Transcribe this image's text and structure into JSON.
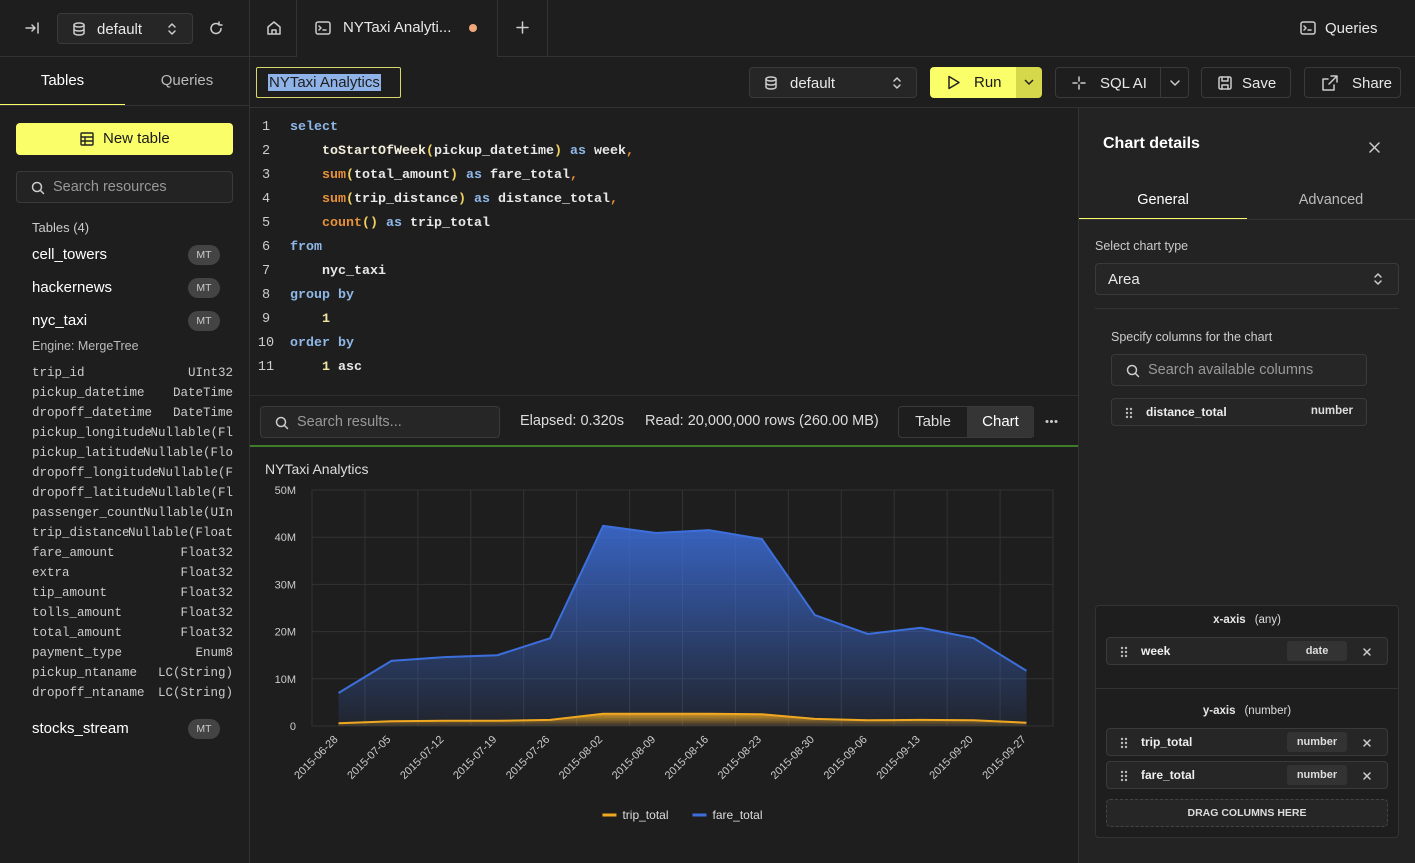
{
  "topbar": {
    "database": "default",
    "tab": "NYTaxi Analyti...",
    "queries": "Queries"
  },
  "sidebar": {
    "tabs": [
      "Tables",
      "Queries"
    ],
    "new_table": "New table",
    "search_placeholder": "Search resources",
    "tables_heading": "Tables (4)",
    "tables": [
      {
        "name": "cell_towers",
        "badge": "MT"
      },
      {
        "name": "hackernews",
        "badge": "MT"
      },
      {
        "name": "nyc_taxi",
        "badge": "MT",
        "engine": "Engine: MergeTree",
        "columns": [
          {
            "name": "trip_id",
            "type": "UInt32"
          },
          {
            "name": "pickup_datetime",
            "type": "DateTime"
          },
          {
            "name": "dropoff_datetime",
            "type": "DateTime"
          },
          {
            "name": "pickup_longitude",
            "type": "Nullable(Fl"
          },
          {
            "name": "pickup_latitude",
            "type": "Nullable(Flo"
          },
          {
            "name": "dropoff_longitude",
            "type": "Nullable(F"
          },
          {
            "name": "dropoff_latitude",
            "type": "Nullable(Fl"
          },
          {
            "name": "passenger_count",
            "type": "Nullable(UIn"
          },
          {
            "name": "trip_distance",
            "type": "Nullable(Float"
          },
          {
            "name": "fare_amount",
            "type": "Float32"
          },
          {
            "name": "extra",
            "type": "Float32"
          },
          {
            "name": "tip_amount",
            "type": "Float32"
          },
          {
            "name": "tolls_amount",
            "type": "Float32"
          },
          {
            "name": "total_amount",
            "type": "Float32"
          },
          {
            "name": "payment_type",
            "type": "Enum8"
          },
          {
            "name": "pickup_ntaname",
            "type": "LC(String)"
          },
          {
            "name": "dropoff_ntaname",
            "type": "LC(String)"
          }
        ]
      },
      {
        "name": "stocks_stream",
        "badge": "MT"
      }
    ]
  },
  "toolbar": {
    "query_name": "NYTaxi Analytics",
    "database": "default",
    "run": "Run",
    "sql_ai": "SQL AI",
    "save": "Save",
    "share": "Share"
  },
  "editor": {
    "lines": [
      {
        "number": 1,
        "tokens": [
          {
            "text": "select",
            "color": "#8fb8e8"
          }
        ]
      },
      {
        "number": 2,
        "tokens": [
          {
            "text": "    toStartOfWeek",
            "color": "#f2eedb"
          },
          {
            "text": "(",
            "color": "#f0d060"
          },
          {
            "text": "pickup_datetime",
            "color": "#e8e8e8"
          },
          {
            "text": ")",
            "color": "#f0d060"
          },
          {
            "text": " as ",
            "color": "#8fb8e8"
          },
          {
            "text": "week",
            "color": "#e8e8e8"
          },
          {
            "text": ",",
            "color": "#e8913a"
          }
        ]
      },
      {
        "number": 3,
        "tokens": [
          {
            "text": "    sum",
            "color": "#e8913a"
          },
          {
            "text": "(",
            "color": "#f0d060"
          },
          {
            "text": "total_amount",
            "color": "#e8e8e8"
          },
          {
            "text": ")",
            "color": "#f0d060"
          },
          {
            "text": " as ",
            "color": "#8fb8e8"
          },
          {
            "text": "fare_total",
            "color": "#e8e8e8"
          },
          {
            "text": ",",
            "color": "#e8913a"
          }
        ]
      },
      {
        "number": 4,
        "tokens": [
          {
            "text": "    sum",
            "color": "#e8913a"
          },
          {
            "text": "(",
            "color": "#f0d060"
          },
          {
            "text": "trip_distance",
            "color": "#e8e8e8"
          },
          {
            "text": ")",
            "color": "#f0d060"
          },
          {
            "text": " as ",
            "color": "#8fb8e8"
          },
          {
            "text": "distance_total",
            "color": "#e8e8e8"
          },
          {
            "text": ",",
            "color": "#e8913a"
          }
        ]
      },
      {
        "number": 5,
        "tokens": [
          {
            "text": "    count",
            "color": "#e8913a"
          },
          {
            "text": "()",
            "color": "#f0d060"
          },
          {
            "text": " as ",
            "color": "#8fb8e8"
          },
          {
            "text": "trip_total",
            "color": "#e8e8e8"
          }
        ]
      },
      {
        "number": 6,
        "tokens": [
          {
            "text": "from",
            "color": "#8fb8e8"
          }
        ]
      },
      {
        "number": 7,
        "tokens": [
          {
            "text": "    nyc_taxi",
            "color": "#e8e8e8"
          }
        ]
      },
      {
        "number": 8,
        "tokens": [
          {
            "text": "group by",
            "color": "#8fb8e8"
          }
        ]
      },
      {
        "number": 9,
        "tokens": [
          {
            "text": "    1",
            "color": "#f3e6a6"
          }
        ]
      },
      {
        "number": 10,
        "tokens": [
          {
            "text": "order by",
            "color": "#8fb8e8"
          }
        ]
      },
      {
        "number": 11,
        "tokens": [
          {
            "text": "    1",
            "color": "#f3e6a6"
          },
          {
            "text": " asc",
            "color": "#e8e8e8"
          }
        ]
      }
    ]
  },
  "results": {
    "search_placeholder": "Search results...",
    "elapsed": "Elapsed: 0.320s",
    "read": "Read: 20,000,000 rows (260.00 MB)",
    "views": [
      "Table",
      "Chart"
    ],
    "active_view": 1
  },
  "chart_data": {
    "type": "area",
    "title": "NYTaxi Analytics",
    "categories": [
      "2015-06-28",
      "2015-07-05",
      "2015-07-12",
      "2015-07-19",
      "2015-07-26",
      "2015-08-02",
      "2015-08-09",
      "2015-08-16",
      "2015-08-23",
      "2015-08-30",
      "2015-09-06",
      "2015-09-13",
      "2015-09-20",
      "2015-09-27"
    ],
    "series": [
      {
        "name": "fare_total",
        "color": "#3d6fdc",
        "values": [
          7000000,
          13800000,
          14600000,
          15000000,
          18600000,
          42400000,
          40900000,
          41500000,
          39600000,
          23500000,
          19500000,
          20800000,
          18600000,
          11700000
        ]
      },
      {
        "name": "trip_total",
        "color": "#f0a821",
        "values": [
          600000,
          1000000,
          1100000,
          1100000,
          1300000,
          2600000,
          2600000,
          2600000,
          2500000,
          1500000,
          1200000,
          1300000,
          1200000,
          700000
        ]
      }
    ],
    "legend_order": [
      "trip_total",
      "fare_total"
    ],
    "ylim": [
      0,
      50000000
    ],
    "yticks": [
      0,
      {
        "value": 10000000,
        "label": "10M"
      },
      {
        "value": 20000000,
        "label": "20M"
      },
      {
        "value": 30000000,
        "label": "30M"
      },
      {
        "value": 40000000,
        "label": "40M"
      },
      {
        "value": 50000000,
        "label": "50M"
      }
    ],
    "grid": true,
    "legend": "bottom"
  },
  "chart_details": {
    "title": "Chart details",
    "tabs": [
      "General",
      "Advanced"
    ],
    "chart_type_label": "Select chart type",
    "chart_type": "Area",
    "columns_label": "Specify columns for the chart",
    "columns_search_placeholder": "Search available columns",
    "available_columns": [
      {
        "name": "distance_total",
        "type": "number"
      }
    ],
    "x_axis": {
      "label": "x-axis",
      "hint": "(any)",
      "columns": [
        {
          "name": "week",
          "type": "date"
        }
      ]
    },
    "y_axis": {
      "label": "y-axis",
      "hint": "(number)",
      "columns": [
        {
          "name": "trip_total",
          "type": "number"
        },
        {
          "name": "fare_total",
          "type": "number"
        }
      ]
    },
    "drop_hint": "DRAG COLUMNS HERE"
  }
}
